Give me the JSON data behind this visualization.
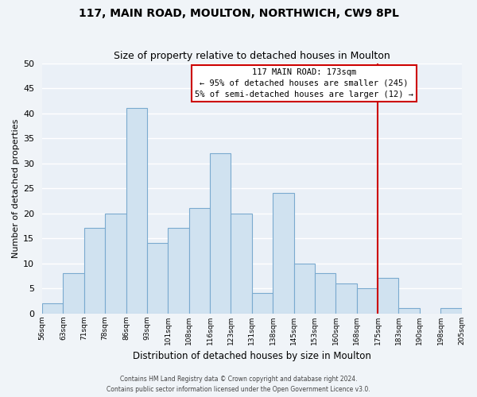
{
  "title": "117, MAIN ROAD, MOULTON, NORTHWICH, CW9 8PL",
  "subtitle": "Size of property relative to detached houses in Moulton",
  "xlabel": "Distribution of detached houses by size in Moulton",
  "ylabel": "Number of detached properties",
  "bin_labels": [
    "56sqm",
    "63sqm",
    "71sqm",
    "78sqm",
    "86sqm",
    "93sqm",
    "101sqm",
    "108sqm",
    "116sqm",
    "123sqm",
    "131sqm",
    "138sqm",
    "145sqm",
    "153sqm",
    "160sqm",
    "168sqm",
    "175sqm",
    "183sqm",
    "190sqm",
    "198sqm",
    "205sqm"
  ],
  "bar_values": [
    2,
    8,
    17,
    20,
    41,
    14,
    17,
    21,
    32,
    20,
    4,
    24,
    10,
    8,
    6,
    5,
    7,
    1,
    0,
    1
  ],
  "bar_color": "#d0e2f0",
  "bar_edge_color": "#7aaacf",
  "ylim": [
    0,
    50
  ],
  "yticks": [
    0,
    5,
    10,
    15,
    20,
    25,
    30,
    35,
    40,
    45,
    50
  ],
  "vline_color": "#cc0000",
  "annotation_title": "117 MAIN ROAD: 173sqm",
  "annotation_line1": "← 95% of detached houses are smaller (245)",
  "annotation_line2": "5% of semi-detached houses are larger (12) →",
  "annotation_box_color": "#ffffff",
  "annotation_box_edge": "#cc0000",
  "footer1": "Contains HM Land Registry data © Crown copyright and database right 2024.",
  "footer2": "Contains public sector information licensed under the Open Government Licence v3.0.",
  "background_color": "#f0f4f8",
  "plot_bg_color": "#eaf0f7",
  "grid_color": "#ffffff",
  "title_fontsize": 10,
  "subtitle_fontsize": 9
}
